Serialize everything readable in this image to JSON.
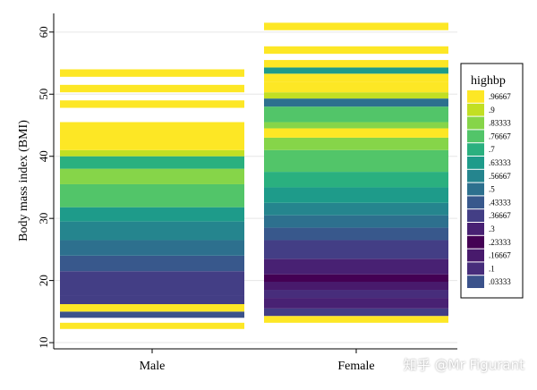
{
  "chart_data": {
    "type": "heatmap",
    "ylabel": "Body mass index (BMI)",
    "ylim": [
      9,
      63
    ],
    "yticks": [
      10,
      20,
      30,
      40,
      50,
      60
    ],
    "categories": [
      "Male",
      "Female"
    ],
    "legend": {
      "title": "highbp",
      "placement": "right",
      "levels": [
        ".96667",
        ".9",
        ".83333",
        ".76667",
        ".7",
        ".63333",
        ".56667",
        ".5",
        ".43333",
        ".36667",
        ".3",
        ".23333",
        ".16667",
        ".1",
        ".03333"
      ],
      "colors": [
        "#fde725",
        "#c2df23",
        "#86d549",
        "#52c569",
        "#2ab07f",
        "#1e9b8a",
        "#25858e",
        "#2d708e",
        "#38588c",
        "#433e85",
        "#482173",
        "#440154",
        "#481a6c",
        "#472d7b",
        "#3b528b"
      ]
    },
    "series": [
      {
        "category": "Male",
        "bands": [
          {
            "y0": 12.2,
            "y1": 13.2,
            "value": 0.96667
          },
          {
            "y0": 14.0,
            "y1": 15.0,
            "value": 0.03333
          },
          {
            "y0": 15.0,
            "y1": 16.2,
            "value": 0.96667
          },
          {
            "y0": 16.2,
            "y1": 17.5,
            "value": 0.36667
          },
          {
            "y0": 17.5,
            "y1": 21.5,
            "value": 0.36667
          },
          {
            "y0": 21.5,
            "y1": 24.0,
            "value": 0.43333
          },
          {
            "y0": 24.0,
            "y1": 26.5,
            "value": 0.5
          },
          {
            "y0": 26.5,
            "y1": 29.5,
            "value": 0.56667
          },
          {
            "y0": 29.5,
            "y1": 31.8,
            "value": 0.63333
          },
          {
            "y0": 31.8,
            "y1": 35.5,
            "value": 0.76667
          },
          {
            "y0": 35.5,
            "y1": 38.0,
            "value": 0.83333
          },
          {
            "y0": 38.0,
            "y1": 40.0,
            "value": 0.7
          },
          {
            "y0": 40.0,
            "y1": 41.0,
            "value": 0.9
          },
          {
            "y0": 41.0,
            "y1": 45.5,
            "value": 0.96667
          },
          {
            "y0": 47.8,
            "y1": 49.0,
            "value": 0.96667
          },
          {
            "y0": 50.3,
            "y1": 51.5,
            "value": 0.96667
          },
          {
            "y0": 52.8,
            "y1": 54.0,
            "value": 0.96667
          }
        ]
      },
      {
        "category": "Female",
        "bands": [
          {
            "y0": 13.2,
            "y1": 14.3,
            "value": 0.96667
          },
          {
            "y0": 14.3,
            "y1": 15.5,
            "value": 0.36667
          },
          {
            "y0": 15.5,
            "y1": 17.2,
            "value": 0.3
          },
          {
            "y0": 17.2,
            "y1": 18.5,
            "value": 0.1
          },
          {
            "y0": 18.5,
            "y1": 19.8,
            "value": 0.16667
          },
          {
            "y0": 19.8,
            "y1": 21.0,
            "value": 0.23333
          },
          {
            "y0": 21.0,
            "y1": 23.5,
            "value": 0.3
          },
          {
            "y0": 23.5,
            "y1": 26.5,
            "value": 0.36667
          },
          {
            "y0": 26.5,
            "y1": 28.5,
            "value": 0.43333
          },
          {
            "y0": 28.5,
            "y1": 30.5,
            "value": 0.5
          },
          {
            "y0": 30.5,
            "y1": 32.5,
            "value": 0.56667
          },
          {
            "y0": 32.5,
            "y1": 35.0,
            "value": 0.63333
          },
          {
            "y0": 35.0,
            "y1": 37.5,
            "value": 0.7
          },
          {
            "y0": 37.5,
            "y1": 41.0,
            "value": 0.76667
          },
          {
            "y0": 41.0,
            "y1": 43.0,
            "value": 0.83333
          },
          {
            "y0": 43.0,
            "y1": 44.5,
            "value": 0.96667
          },
          {
            "y0": 44.5,
            "y1": 45.5,
            "value": 0.83333
          },
          {
            "y0": 45.5,
            "y1": 48.0,
            "value": 0.76667
          },
          {
            "y0": 48.0,
            "y1": 49.3,
            "value": 0.5
          },
          {
            "y0": 49.3,
            "y1": 50.3,
            "value": 0.9
          },
          {
            "y0": 50.3,
            "y1": 52.0,
            "value": 0.96667
          },
          {
            "y0": 52.0,
            "y1": 53.3,
            "value": 0.96667
          },
          {
            "y0": 53.3,
            "y1": 54.3,
            "value": 0.63333
          },
          {
            "y0": 54.3,
            "y1": 55.5,
            "value": 0.96667
          },
          {
            "y0": 56.5,
            "y1": 57.7,
            "value": 0.96667
          },
          {
            "y0": 60.3,
            "y1": 61.5,
            "value": 0.96667
          }
        ]
      }
    ]
  },
  "watermark": "知乎 @Mr Figurant",
  "colors": {
    "gridline": "#e6e6e6",
    "axis": "#000000",
    "background": "#ffffff"
  }
}
